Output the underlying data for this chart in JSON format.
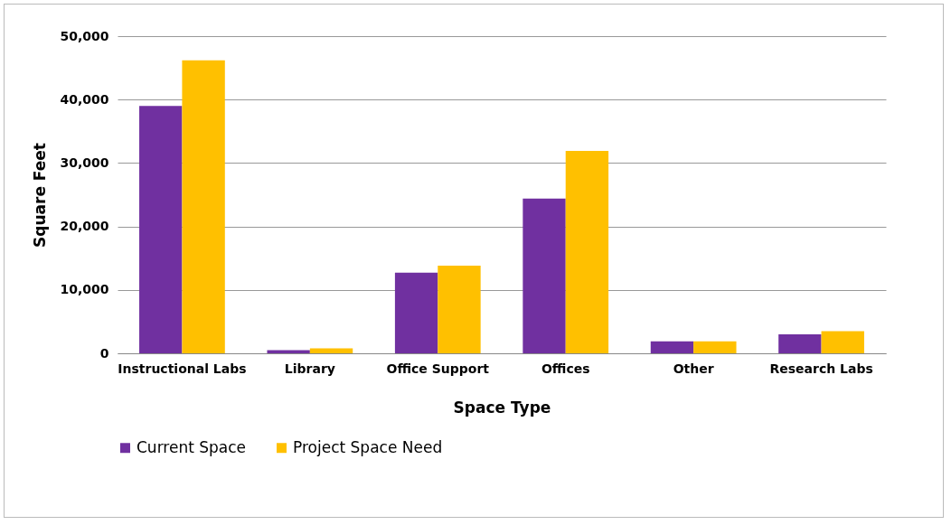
{
  "chart_data": {
    "type": "bar",
    "xlabel": "Space Type",
    "ylabel": "Square Feet",
    "categories": [
      "Instructional Labs",
      "Library",
      "Office Support",
      "Offices",
      "Other",
      "Research Labs"
    ],
    "series": [
      {
        "name": "Current Space",
        "color": "#7030a0",
        "values": [
          39000,
          500,
          12700,
          24400,
          1900,
          3000
        ]
      },
      {
        "name": "Project Space Need",
        "color": "#ffc000",
        "values": [
          46200,
          800,
          13800,
          31900,
          1900,
          3500
        ]
      }
    ],
    "ylim": [
      0,
      50000
    ],
    "yticks": [
      {
        "value": 0,
        "label": "0"
      },
      {
        "value": 10000,
        "label": "10,000"
      },
      {
        "value": 20000,
        "label": "20,000"
      },
      {
        "value": 30000,
        "label": "30,000"
      },
      {
        "value": 40000,
        "label": "40,000"
      },
      {
        "value": 50000,
        "label": "50,000"
      }
    ],
    "grid": "y",
    "legend": "bottom"
  }
}
